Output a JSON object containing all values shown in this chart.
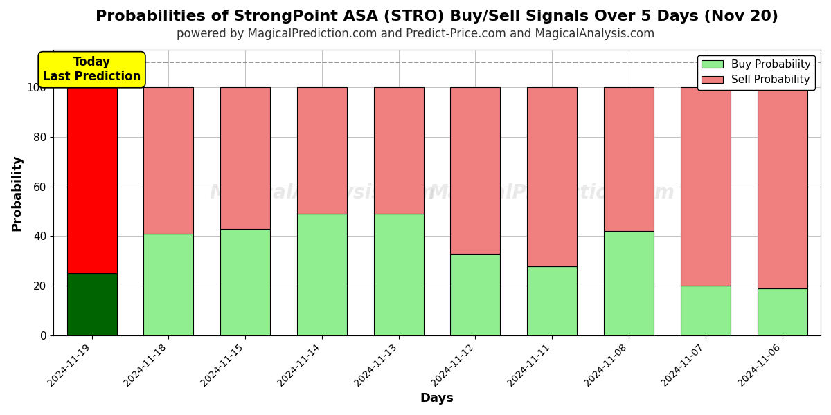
{
  "title": "Probabilities of StrongPoint ASA (STRO) Buy/Sell Signals Over 5 Days (Nov 20)",
  "subtitle": "powered by MagicalPrediction.com and Predict-Price.com and MagicalAnalysis.com",
  "xlabel": "Days",
  "ylabel": "Probability",
  "dates": [
    "2024-11-19",
    "2024-11-18",
    "2024-11-15",
    "2024-11-14",
    "2024-11-13",
    "2024-11-12",
    "2024-11-11",
    "2024-11-08",
    "2024-11-07",
    "2024-11-06"
  ],
  "buy_values": [
    25,
    41,
    43,
    49,
    49,
    33,
    28,
    42,
    20,
    19
  ],
  "sell_values": [
    75,
    59,
    57,
    51,
    51,
    67,
    72,
    58,
    80,
    81
  ],
  "today_buy_color": "#006400",
  "today_sell_color": "#FF0000",
  "other_buy_color": "#90EE90",
  "other_sell_color": "#F08080",
  "bar_edge_color": "#000000",
  "background_color": "#ffffff",
  "grid_color": "#aaaaaa",
  "dashed_line_y": 110,
  "ylim": [
    0,
    115
  ],
  "yticks": [
    0,
    20,
    40,
    60,
    80,
    100
  ],
  "annotation_text": "Today\nLast Prediction",
  "annotation_bg": "#FFFF00",
  "watermark_lines": [
    "MagicalAnalysis.com",
    "MagicalPrediction.com"
  ],
  "title_fontsize": 16,
  "subtitle_fontsize": 12,
  "label_fontsize": 13
}
